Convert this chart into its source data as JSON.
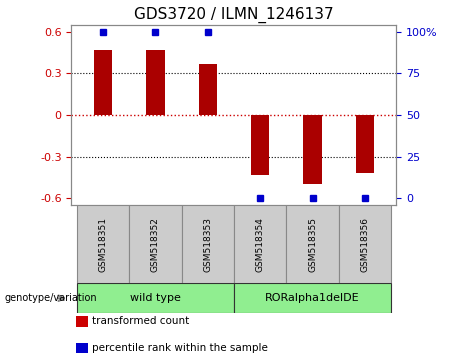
{
  "title": "GDS3720 / ILMN_1246137",
  "categories": [
    "GSM518351",
    "GSM518352",
    "GSM518353",
    "GSM518354",
    "GSM518355",
    "GSM518356"
  ],
  "bar_values": [
    0.47,
    0.47,
    0.37,
    -0.43,
    -0.5,
    -0.42
  ],
  "percentile_y_pos": [
    0.6,
    0.6,
    0.6,
    -0.6,
    -0.6,
    -0.6
  ],
  "bar_color": "#aa0000",
  "percentile_color": "#0000cc",
  "ylim": [
    -0.65,
    0.65
  ],
  "yticks_left": [
    -0.6,
    -0.3,
    0,
    0.3,
    0.6
  ],
  "yticks_right": [
    0,
    25,
    50,
    75,
    100
  ],
  "yticks_right_pos": [
    -0.6,
    -0.3,
    0.0,
    0.3,
    0.6
  ],
  "zero_line_color": "#cc0000",
  "dotted_line_color": "#000000",
  "group_labels": [
    "wild type",
    "RORalpha1delDE"
  ],
  "group_ranges": [
    [
      0,
      3
    ],
    [
      3,
      6
    ]
  ],
  "group_colors": [
    "#90ee90",
    "#90ee90"
  ],
  "genotype_label": "genotype/variation",
  "legend_items": [
    {
      "label": "transformed count",
      "color": "#cc0000"
    },
    {
      "label": "percentile rank within the sample",
      "color": "#0000cc"
    }
  ],
  "bar_width": 0.35,
  "background_color": "#ffffff",
  "plot_bg_color": "#ffffff",
  "tick_label_color_left": "#cc0000",
  "tick_label_color_right": "#0000cc",
  "title_fontsize": 11,
  "tick_fontsize": 8,
  "percentile_marker_size": 4,
  "sample_box_color": "#cccccc",
  "sample_box_edge": "#888888"
}
